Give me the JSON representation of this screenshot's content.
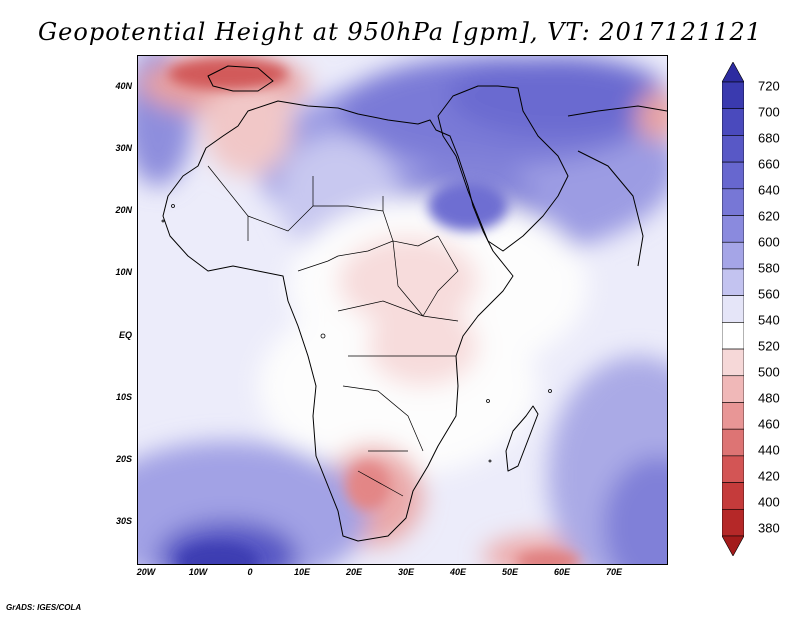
{
  "title": "Geopotential Height at 950hPa [gpm], VT: 2017121121",
  "y_axis_labels": [
    "40N",
    "30N",
    "20N",
    "10N",
    "EQ",
    "10S",
    "20S",
    "30S"
  ],
  "x_axis_labels": [
    "20W",
    "10W",
    "0",
    "10E",
    "20E",
    "30E",
    "40E",
    "50E",
    "60E",
    "70E"
  ],
  "colorbar": {
    "levels": [
      720,
      700,
      680,
      660,
      640,
      620,
      600,
      580,
      560,
      540,
      520,
      500,
      480,
      460,
      440,
      420,
      400,
      380
    ],
    "colors": [
      "#2d2ba0",
      "#3a3aaf",
      "#4a4abd",
      "#5858c6",
      "#6767cf",
      "#7777d6",
      "#8a8ade",
      "#a5a5e7",
      "#c3c3f0",
      "#e5e5f8",
      "#ffffff",
      "#f6d8d8",
      "#f0b8b8",
      "#e89696",
      "#dd7474",
      "#d35555",
      "#c53b3b",
      "#b52828",
      "#a31b1b"
    ]
  },
  "credit": "GrADS: IGES/COLA"
}
